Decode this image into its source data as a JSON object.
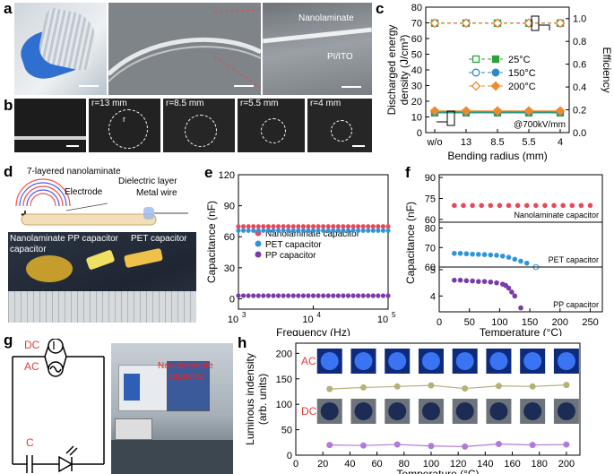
{
  "panel_labels": {
    "a": "a",
    "b": "b",
    "c": "c",
    "d": "d",
    "e": "e",
    "f": "f",
    "g": "g",
    "h": "h"
  },
  "panel_a": {
    "label_nanolaminate": "Nanolaminate",
    "label_substrate": "PI/ITO"
  },
  "panel_b": {
    "radii": [
      "r=13 mm",
      "r=8.5 mm",
      "r=5.5 mm",
      "r=4 mm"
    ],
    "inset_r": "r"
  },
  "panel_d": {
    "label_layers": "7-layered nanolaminate",
    "label_electrode": "Electrode",
    "label_dielectric": "Dielectric layer",
    "label_wire": "Metal wire",
    "label_nano_pp": "Nanolaminate PP capacitor",
    "label_pet": "PET capacitor",
    "label_capacitor": "capacitor"
  },
  "panel_g": {
    "dc": "DC",
    "ac": "AC",
    "c": "C",
    "nano": "Nanolaminate",
    "cap": "capacitor"
  },
  "panel_h_labels": {
    "ac": "AC",
    "dc": "DC"
  },
  "chart_data": [
    {
      "id": "c",
      "type": "line",
      "xlabel": "Bending radius (mm)",
      "ylabel": "Discharged energy density (J/cm³)",
      "y2label": "Efficiency",
      "categories": [
        "w/o",
        "13",
        "8.5",
        "5.5",
        "4"
      ],
      "ylim": [
        0,
        80
      ],
      "yticks": [
        0,
        10,
        20,
        30,
        40,
        50,
        60,
        70,
        80
      ],
      "y2lim": [
        0,
        1.1
      ],
      "y2ticks": [
        "0.0",
        "0.2",
        "0.4",
        "0.6",
        "0.8",
        "1.0"
      ],
      "annotation": "@700kV/mm",
      "legend": [
        "25°C",
        "150°C",
        "200°C"
      ],
      "colors": {
        "25°C": "#2aa33a",
        "150°C": "#2a8ac4",
        "200°C": "#ee8a2a"
      },
      "energy": [
        {
          "name": "25°C",
          "values": [
            12.6,
            12.6,
            12.6,
            12.6,
            12.6
          ]
        },
        {
          "name": "150°C",
          "values": [
            13.2,
            13.2,
            13.2,
            13.2,
            13.2
          ]
        },
        {
          "name": "200°C",
          "values": [
            13.8,
            13.8,
            13.8,
            13.8,
            13.8
          ]
        }
      ],
      "efficiency": [
        {
          "name": "25°C",
          "values": [
            0.96,
            0.96,
            0.96,
            0.96,
            0.96
          ]
        },
        {
          "name": "150°C",
          "values": [
            0.96,
            0.96,
            0.96,
            0.96,
            0.96
          ]
        },
        {
          "name": "200°C",
          "values": [
            0.96,
            0.96,
            0.96,
            0.96,
            0.96
          ]
        }
      ]
    },
    {
      "id": "e",
      "type": "scatter",
      "xlabel": "Frequency (Hz)",
      "ylabel": "Capacitance (nF)",
      "ylim": [
        -10,
        120
      ],
      "yticks": [
        0,
        30,
        60,
        90,
        120
      ],
      "xscale": "log",
      "xlim": [
        1000,
        100000
      ],
      "xtick_base": "10",
      "xtick_exps": [
        "3",
        "4",
        "5"
      ],
      "series": [
        {
          "name": "Nanolaminate capacitor",
          "color": "#e8485a",
          "value": 70
        },
        {
          "name": "PET capacitor",
          "color": "#2f95d8",
          "value": 66
        },
        {
          "name": "PP capacitor",
          "color": "#7a3aa8",
          "value": 3
        }
      ]
    },
    {
      "id": "f",
      "type": "scatter",
      "xlabel": "Temperature (°C)",
      "ylabel": "Capacitance (nF)",
      "xticks": [
        0,
        50,
        100,
        150,
        200,
        250
      ],
      "subplots": [
        {
          "label": "Nanolaminate capacitor",
          "color": "#e8485a",
          "ylim": [
            58,
            92
          ],
          "yticks": [
            60,
            75,
            90
          ],
          "x": [
            25,
            40,
            55,
            70,
            85,
            100,
            115,
            130,
            145,
            160,
            175,
            190,
            205,
            220,
            235,
            250
          ],
          "y": [
            70,
            70,
            70,
            70,
            70,
            70,
            70,
            70,
            70,
            70,
            70,
            70,
            70,
            70,
            70,
            70
          ]
        },
        {
          "label": "PET capacitor",
          "color": "#2f95d8",
          "ylim": [
            60,
            83
          ],
          "yticks": [
            60,
            70,
            80
          ],
          "x": [
            25,
            35,
            45,
            55,
            65,
            75,
            85,
            95,
            105,
            115,
            125,
            135,
            145,
            160
          ],
          "y": [
            67,
            67,
            66.8,
            66.6,
            66.5,
            66.4,
            66.2,
            66,
            65.6,
            65,
            64,
            63,
            62,
            60
          ]
        },
        {
          "label": "PP capacitor",
          "color": "#7a3aa8",
          "ylim": [
            3.4,
            5.1
          ],
          "yticks": [
            4,
            5
          ],
          "x": [
            25,
            35,
            45,
            55,
            65,
            75,
            85,
            95,
            105,
            110,
            115,
            120,
            125,
            135
          ],
          "y": [
            4.6,
            4.6,
            4.58,
            4.57,
            4.55,
            4.55,
            4.53,
            4.5,
            4.45,
            4.4,
            4.3,
            4.15,
            4.0,
            3.55
          ]
        }
      ]
    },
    {
      "id": "h",
      "type": "line",
      "xlabel": "Temperature (°C)",
      "ylabel": "Luminous indensity (arb. units)",
      "ylim": [
        0,
        220
      ],
      "yticks": [
        0,
        50,
        100,
        150,
        200
      ],
      "xlim": [
        0,
        210
      ],
      "xticks": [
        0,
        20,
        40,
        60,
        80,
        100,
        120,
        140,
        160,
        180,
        200
      ],
      "series": [
        {
          "name": "AC",
          "color": "#b5b07a",
          "x": [
            25,
            50,
            75,
            100,
            125,
            150,
            175,
            200
          ],
          "y": [
            130,
            133,
            135,
            137,
            131,
            136,
            135,
            138
          ]
        },
        {
          "name": "DC",
          "color": "#b27ad8",
          "x": [
            25,
            50,
            75,
            100,
            125,
            150,
            175,
            200
          ],
          "y": [
            20,
            19,
            21,
            18,
            17,
            22,
            20,
            21
          ]
        }
      ]
    }
  ]
}
